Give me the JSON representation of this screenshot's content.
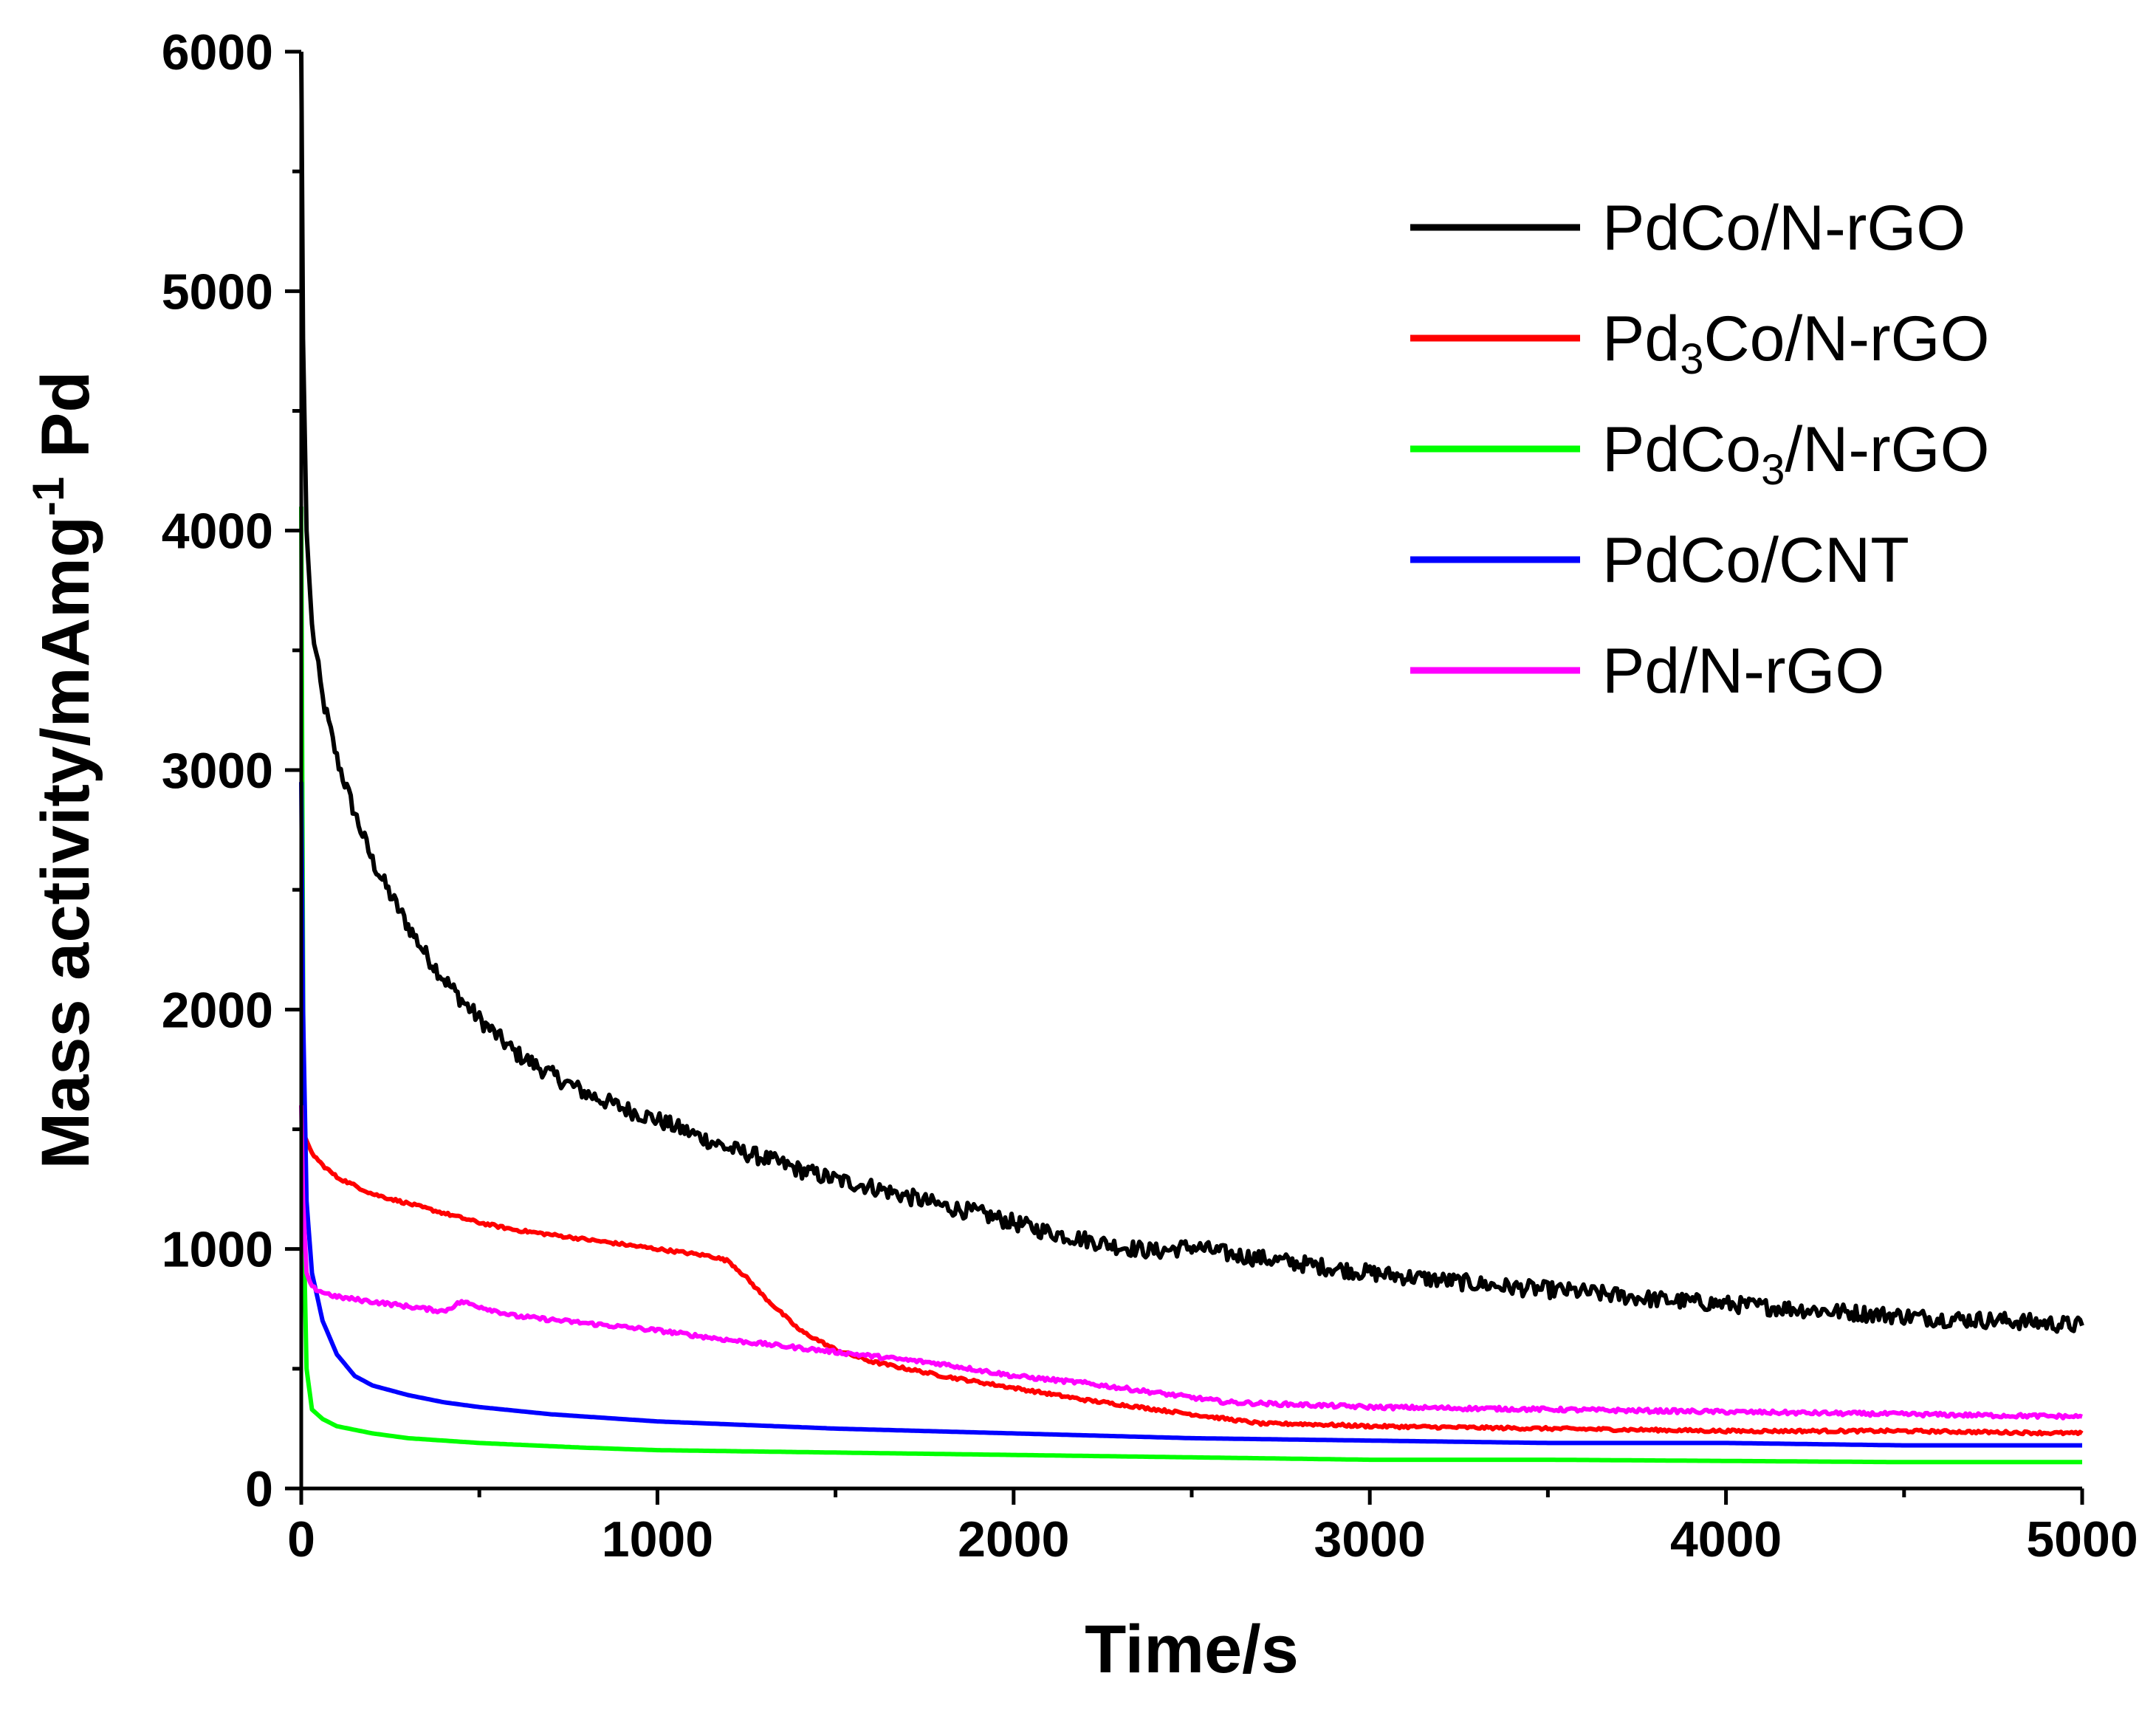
{
  "chart_data": {
    "type": "line",
    "title": "",
    "xlabel": "Time/s",
    "ylabel": {
      "main": "Mass activity/mAmg",
      "sup": "-1",
      "tail": " Pd"
    },
    "xlim": [
      0,
      5000
    ],
    "ylim": [
      0,
      6000
    ],
    "xticks": [
      0,
      1000,
      2000,
      3000,
      4000,
      5000
    ],
    "yticks": [
      0,
      1000,
      2000,
      3000,
      4000,
      5000,
      6000
    ],
    "grid": false,
    "legend_position": "top-right",
    "series": [
      {
        "name": "PdCo/N-rGO",
        "label_parts": [
          "PdCo/N-rGO"
        ],
        "color": "#000000",
        "noise": 35,
        "x": [
          0,
          5,
          15,
          30,
          60,
          100,
          150,
          200,
          250,
          300,
          350,
          400,
          450,
          500,
          600,
          700,
          800,
          900,
          1000,
          1100,
          1200,
          1300,
          1400,
          1500,
          1600,
          1700,
          1800,
          1900,
          2000,
          2100,
          2200,
          2300,
          2400,
          2500,
          2600,
          2700,
          2800,
          2900,
          3000,
          3200,
          3400,
          3600,
          3800,
          4000,
          4200,
          4400,
          4600,
          4800,
          5000
        ],
        "y": [
          6000,
          4800,
          4000,
          3600,
          3300,
          3050,
          2820,
          2620,
          2480,
          2350,
          2230,
          2130,
          2040,
          1960,
          1820,
          1730,
          1650,
          1590,
          1540,
          1480,
          1420,
          1380,
          1330,
          1290,
          1260,
          1220,
          1180,
          1150,
          1110,
          1070,
          1040,
          1010,
          990,
          1010,
          980,
          960,
          940,
          920,
          900,
          870,
          840,
          820,
          790,
          770,
          750,
          730,
          710,
          700,
          680
        ]
      },
      {
        "name": "Pd3Co/N-rGO",
        "label_parts": [
          "Pd",
          "3",
          "Co/N-rGO"
        ],
        "color": "#ff0000",
        "noise": 6,
        "x": [
          0,
          10,
          30,
          60,
          100,
          200,
          300,
          400,
          500,
          600,
          800,
          1000,
          1150,
          1200,
          1250,
          1300,
          1400,
          1500,
          1600,
          1800,
          2000,
          2200,
          2400,
          2600,
          2700,
          2800,
          3000,
          3500,
          4000,
          4500,
          5000
        ],
        "y": [
          1600,
          1470,
          1400,
          1350,
          1300,
          1230,
          1190,
          1150,
          1110,
          1080,
          1040,
          1000,
          970,
          950,
          880,
          800,
          660,
          580,
          530,
          470,
          420,
          370,
          330,
          290,
          270,
          270,
          260,
          250,
          240,
          240,
          230
        ]
      },
      {
        "name": "PdCo3/N-rGO",
        "label_parts": [
          "PdCo",
          "3",
          "/N-rGO"
        ],
        "color": "#00ff00",
        "noise": 0,
        "x": [
          0,
          3,
          8,
          15,
          30,
          60,
          100,
          200,
          300,
          500,
          800,
          1000,
          1500,
          2000,
          2500,
          3000,
          3500,
          4000,
          4500,
          5000
        ],
        "y": [
          4100,
          2950,
          1000,
          500,
          330,
          290,
          260,
          230,
          210,
          190,
          170,
          160,
          150,
          140,
          130,
          120,
          120,
          115,
          110,
          110
        ]
      },
      {
        "name": "PdCo/CNT",
        "label_parts": [
          "PdCo/CNT"
        ],
        "color": "#0000ff",
        "noise": 0,
        "x": [
          0,
          5,
          15,
          30,
          60,
          100,
          150,
          200,
          300,
          400,
          500,
          700,
          1000,
          1500,
          2000,
          2500,
          3000,
          3500,
          4000,
          4500,
          5000
        ],
        "y": [
          2950,
          2000,
          1200,
          900,
          700,
          560,
          470,
          430,
          390,
          360,
          340,
          310,
          280,
          250,
          230,
          210,
          200,
          190,
          190,
          180,
          180
        ]
      },
      {
        "name": "Pd/N-rGO",
        "label_parts": [
          "Pd/N-rGO"
        ],
        "color": "#ff00ff",
        "noise": 8,
        "x": [
          0,
          5,
          15,
          30,
          60,
          100,
          200,
          300,
          400,
          450,
          500,
          600,
          800,
          1000,
          1200,
          1500,
          1800,
          2000,
          2200,
          2400,
          2600,
          2800,
          3000,
          3500,
          4000,
          4500,
          5000
        ],
        "y": [
          1600,
          1200,
          900,
          840,
          820,
          800,
          780,
          760,
          740,
          780,
          760,
          720,
          690,
          660,
          620,
          570,
          520,
          470,
          440,
          400,
          360,
          350,
          340,
          330,
          320,
          310,
          300
        ]
      }
    ]
  }
}
